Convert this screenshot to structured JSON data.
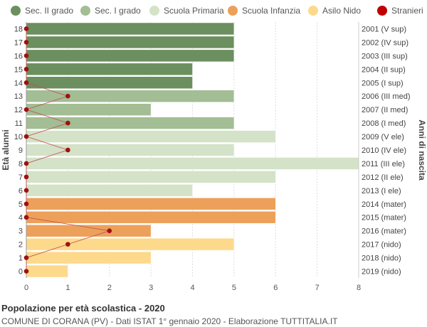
{
  "chart_data": {
    "type": "bar",
    "orientation": "horizontal",
    "yaxis_left_label": "Età alunni",
    "yaxis_right_label": "Anni di nascita",
    "xlim": [
      0,
      8
    ],
    "x_ticks": [
      "0",
      "1",
      "2",
      "3",
      "4",
      "5",
      "6",
      "7",
      "8"
    ],
    "grid": true,
    "legend_position": "top",
    "legend": [
      {
        "name": "Sec. II grado",
        "color": "#6b8f5e"
      },
      {
        "name": "Sec. I grado",
        "color": "#a3bd94"
      },
      {
        "name": "Scuola Primaria",
        "color": "#d4e2c8"
      },
      {
        "name": "Scuola Infanzia",
        "color": "#eda05a"
      },
      {
        "name": "Asilo Nido",
        "color": "#fdd98c"
      },
      {
        "name": "Stranieri",
        "color": "#c00000"
      }
    ],
    "rows": [
      {
        "age": "18",
        "birth": "2001 (V sup)",
        "value": 5,
        "group": 0,
        "stranieri": 0
      },
      {
        "age": "17",
        "birth": "2002 (IV sup)",
        "value": 5,
        "group": 0,
        "stranieri": 0
      },
      {
        "age": "16",
        "birth": "2003 (III sup)",
        "value": 5,
        "group": 0,
        "stranieri": 0
      },
      {
        "age": "15",
        "birth": "2004 (II sup)",
        "value": 4,
        "group": 0,
        "stranieri": 0
      },
      {
        "age": "14",
        "birth": "2005 (I sup)",
        "value": 4,
        "group": 0,
        "stranieri": 0
      },
      {
        "age": "13",
        "birth": "2006 (III med)",
        "value": 5,
        "group": 1,
        "stranieri": 1
      },
      {
        "age": "12",
        "birth": "2007 (II med)",
        "value": 3,
        "group": 1,
        "stranieri": 0
      },
      {
        "age": "11",
        "birth": "2008 (I med)",
        "value": 5,
        "group": 1,
        "stranieri": 1
      },
      {
        "age": "10",
        "birth": "2009 (V ele)",
        "value": 6,
        "group": 2,
        "stranieri": 0
      },
      {
        "age": "9",
        "birth": "2010 (IV ele)",
        "value": 5,
        "group": 2,
        "stranieri": 1
      },
      {
        "age": "8",
        "birth": "2011 (III ele)",
        "value": 8,
        "group": 2,
        "stranieri": 0
      },
      {
        "age": "7",
        "birth": "2012 (II ele)",
        "value": 6,
        "group": 2,
        "stranieri": 0
      },
      {
        "age": "6",
        "birth": "2013 (I ele)",
        "value": 4,
        "group": 2,
        "stranieri": 0
      },
      {
        "age": "5",
        "birth": "2014 (mater)",
        "value": 6,
        "group": 3,
        "stranieri": 0
      },
      {
        "age": "4",
        "birth": "2015 (mater)",
        "value": 6,
        "group": 3,
        "stranieri": 0
      },
      {
        "age": "3",
        "birth": "2016 (mater)",
        "value": 3,
        "group": 3,
        "stranieri": 2
      },
      {
        "age": "2",
        "birth": "2017 (nido)",
        "value": 5,
        "group": 4,
        "stranieri": 1
      },
      {
        "age": "1",
        "birth": "2018 (nido)",
        "value": 3,
        "group": 4,
        "stranieri": 0
      },
      {
        "age": "0",
        "birth": "2019 (nido)",
        "value": 1,
        "group": 4,
        "stranieri": 0
      }
    ]
  },
  "footer": {
    "title": "Popolazione per età scolastica - 2020",
    "subtitle": "COMUNE DI CORANA (PV) - Dati ISTAT 1° gennaio 2020 - Elaborazione TUTTITALIA.IT"
  }
}
